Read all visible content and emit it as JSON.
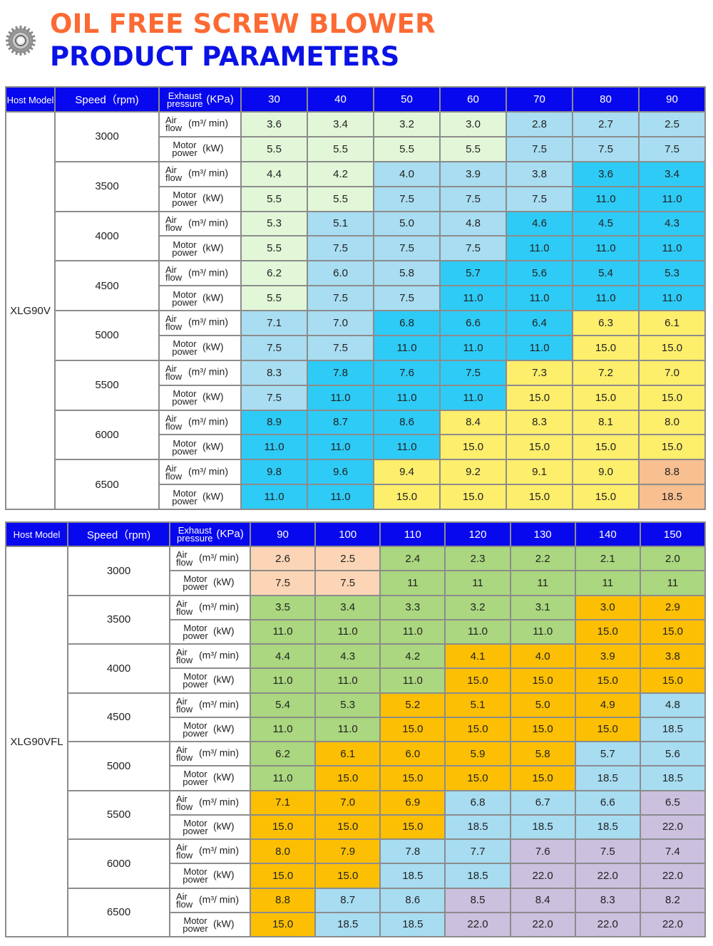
{
  "header": {
    "title_line1": "OIL FREE SCREW BLOWER",
    "title_line2": "PRODUCT PARAMETERS",
    "icon": "gear-icon"
  },
  "labels": {
    "host_model": "Host Model",
    "speed": "Speed（rpm)",
    "exhaust": "Exhaust pressure",
    "exhaust_unit": "(KPa)",
    "air_flow": "Air flow",
    "air_flow_unit": "(m³/ min)",
    "motor_power": "Motor power",
    "motor_power_unit": "(kW)"
  },
  "tables": [
    {
      "model": "XLG90V",
      "pressures": [
        "30",
        "40",
        "50",
        "60",
        "70",
        "80",
        "90"
      ],
      "colors_by_power": {
        "5.5": "#e2f7d8",
        "7.5": "#a9ddf1",
        "11.0": "#2ecbf6",
        "15.0": "#fdee6c",
        "18.5": "#f8bf90"
      },
      "rows": [
        {
          "speed": "3000",
          "air": [
            "3.6",
            "3.4",
            "3.2",
            "3.0",
            "2.8",
            "2.7",
            "2.5"
          ],
          "power": [
            "5.5",
            "5.5",
            "5.5",
            "5.5",
            "7.5",
            "7.5",
            "7.5"
          ]
        },
        {
          "speed": "3500",
          "air": [
            "4.4",
            "4.2",
            "4.0",
            "3.9",
            "3.8",
            "3.6",
            "3.4"
          ],
          "power": [
            "5.5",
            "5.5",
            "7.5",
            "7.5",
            "7.5",
            "11.0",
            "11.0"
          ]
        },
        {
          "speed": "4000",
          "air": [
            "5.3",
            "5.1",
            "5.0",
            "4.8",
            "4.6",
            "4.5",
            "4.3"
          ],
          "power": [
            "5.5",
            "7.5",
            "7.5",
            "7.5",
            "11.0",
            "11.0",
            "11.0"
          ]
        },
        {
          "speed": "4500",
          "air": [
            "6.2",
            "6.0",
            "5.8",
            "5.7",
            "5.6",
            "5.4",
            "5.3"
          ],
          "power": [
            "5.5",
            "7.5",
            "7.5",
            "11.0",
            "11.0",
            "11.0",
            "11.0"
          ]
        },
        {
          "speed": "5000",
          "air": [
            "7.1",
            "7.0",
            "6.8",
            "6.6",
            "6.4",
            "6.3",
            "6.1"
          ],
          "power": [
            "7.5",
            "7.5",
            "11.0",
            "11.0",
            "11.0",
            "15.0",
            "15.0"
          ]
        },
        {
          "speed": "5500",
          "air": [
            "8.3",
            "7.8",
            "7.6",
            "7.5",
            "7.3",
            "7.2",
            "7.0"
          ],
          "power": [
            "7.5",
            "11.0",
            "11.0",
            "11.0",
            "15.0",
            "15.0",
            "15.0"
          ]
        },
        {
          "speed": "6000",
          "air": [
            "8.9",
            "8.7",
            "8.6",
            "8.4",
            "8.3",
            "8.1",
            "8.0"
          ],
          "power": [
            "11.0",
            "11.0",
            "11.0",
            "15.0",
            "15.0",
            "15.0",
            "15.0"
          ]
        },
        {
          "speed": "6500",
          "air": [
            "9.8",
            "9.6",
            "9.4",
            "9.2",
            "9.1",
            "9.0",
            "8.8"
          ],
          "power": [
            "11.0",
            "11.0",
            "15.0",
            "15.0",
            "15.0",
            "15.0",
            "18.5"
          ]
        }
      ]
    },
    {
      "model": "XLG90VFL",
      "pressures": [
        "90",
        "100",
        "110",
        "120",
        "130",
        "140",
        "150"
      ],
      "colors_by_power": {
        "7.5": "#fbd5b6",
        "11": "#aad77f",
        "11.0": "#aad77f",
        "15.0": "#fdbf03",
        "18.5": "#a7dcf1",
        "22.0": "#cbc0de"
      },
      "rows": [
        {
          "speed": "3000",
          "air": [
            "2.6",
            "2.5",
            "2.4",
            "2.3",
            "2.2",
            "2.1",
            "2.0"
          ],
          "power": [
            "7.5",
            "7.5",
            "11",
            "11",
            "11",
            "11",
            "11"
          ]
        },
        {
          "speed": "3500",
          "air": [
            "3.5",
            "3.4",
            "3.3",
            "3.2",
            "3.1",
            "3.0",
            "2.9"
          ],
          "power": [
            "11.0",
            "11.0",
            "11.0",
            "11.0",
            "11.0",
            "15.0",
            "15.0"
          ]
        },
        {
          "speed": "4000",
          "air": [
            "4.4",
            "4.3",
            "4.2",
            "4.1",
            "4.0",
            "3.9",
            "3.8"
          ],
          "power": [
            "11.0",
            "11.0",
            "11.0",
            "15.0",
            "15.0",
            "15.0",
            "15.0"
          ]
        },
        {
          "speed": "4500",
          "air": [
            "5.4",
            "5.3",
            "5.2",
            "5.1",
            "5.0",
            "4.9",
            "4.8"
          ],
          "power": [
            "11.0",
            "11.0",
            "15.0",
            "15.0",
            "15.0",
            "15.0",
            "18.5"
          ]
        },
        {
          "speed": "5000",
          "air": [
            "6.2",
            "6.1",
            "6.0",
            "5.9",
            "5.8",
            "5.7",
            "5.6"
          ],
          "power": [
            "11.0",
            "15.0",
            "15.0",
            "15.0",
            "15.0",
            "18.5",
            "18.5"
          ]
        },
        {
          "speed": "5500",
          "air": [
            "7.1",
            "7.0",
            "6.9",
            "6.8",
            "6.7",
            "6.6",
            "6.5"
          ],
          "power": [
            "15.0",
            "15.0",
            "15.0",
            "18.5",
            "18.5",
            "18.5",
            "22.0"
          ]
        },
        {
          "speed": "6000",
          "air": [
            "8.0",
            "7.9",
            "7.8",
            "7.7",
            "7.6",
            "7.5",
            "7.4"
          ],
          "power": [
            "15.0",
            "15.0",
            "18.5",
            "18.5",
            "22.0",
            "22.0",
            "22.0"
          ]
        },
        {
          "speed": "6500",
          "air": [
            "8.8",
            "8.7",
            "8.6",
            "8.5",
            "8.4",
            "8.3",
            "8.2"
          ],
          "power": [
            "15.0",
            "18.5",
            "18.5",
            "22.0",
            "22.0",
            "22.0",
            "22.0"
          ]
        }
      ]
    }
  ]
}
